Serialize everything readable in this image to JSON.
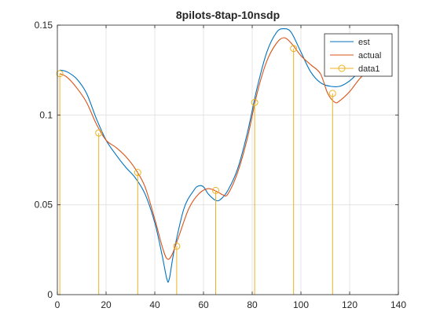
{
  "chart_data": {
    "type": "line",
    "title": "8pilots-8tap-10nsdp",
    "xlabel": "",
    "ylabel": "",
    "xlim": [
      0,
      140
    ],
    "ylim": [
      0,
      0.15
    ],
    "x_ticks": [
      0,
      20,
      40,
      60,
      80,
      100,
      120,
      140
    ],
    "x_tick_labels": [
      "0",
      "20",
      "40",
      "60",
      "80",
      "100",
      "120",
      "140"
    ],
    "y_ticks": [
      0,
      0.05,
      0.1,
      0.15
    ],
    "y_tick_labels": [
      "0",
      "0.05",
      "0.1",
      "0.15"
    ],
    "grid": true,
    "legend_position": "top-right",
    "series": [
      {
        "name": "est",
        "kind": "line",
        "color": "#0072BD",
        "points": [
          [
            1,
            0.125
          ],
          [
            4,
            0.124
          ],
          [
            8,
            0.12
          ],
          [
            12,
            0.112
          ],
          [
            16,
            0.098
          ],
          [
            20,
            0.086
          ],
          [
            24,
            0.078
          ],
          [
            28,
            0.071
          ],
          [
            32,
            0.065
          ],
          [
            36,
            0.056
          ],
          [
            40,
            0.04
          ],
          [
            43,
            0.022
          ],
          [
            45,
            0.0085
          ],
          [
            46,
            0.009
          ],
          [
            48,
            0.025
          ],
          [
            52,
            0.048
          ],
          [
            56,
            0.058
          ],
          [
            58,
            0.0605
          ],
          [
            60,
            0.06
          ],
          [
            62,
            0.056
          ],
          [
            65,
            0.0525
          ],
          [
            67,
            0.053
          ],
          [
            70,
            0.058
          ],
          [
            74,
            0.07
          ],
          [
            78,
            0.09
          ],
          [
            82,
            0.115
          ],
          [
            86,
            0.135
          ],
          [
            90,
            0.146
          ],
          [
            93,
            0.148
          ],
          [
            96,
            0.146
          ],
          [
            100,
            0.135
          ],
          [
            104,
            0.124
          ],
          [
            108,
            0.118
          ],
          [
            112,
            0.116
          ],
          [
            116,
            0.116
          ],
          [
            120,
            0.119
          ],
          [
            124,
            0.124
          ],
          [
            127,
            0.127
          ]
        ]
      },
      {
        "name": "actual",
        "kind": "line",
        "color": "#D95319",
        "points": [
          [
            1,
            0.123
          ],
          [
            4,
            0.121
          ],
          [
            8,
            0.115
          ],
          [
            12,
            0.107
          ],
          [
            16,
            0.095
          ],
          [
            20,
            0.086
          ],
          [
            24,
            0.082
          ],
          [
            28,
            0.077
          ],
          [
            32,
            0.07
          ],
          [
            36,
            0.06
          ],
          [
            40,
            0.042
          ],
          [
            43,
            0.027
          ],
          [
            45,
            0.02
          ],
          [
            47,
            0.022
          ],
          [
            50,
            0.033
          ],
          [
            54,
            0.048
          ],
          [
            58,
            0.056
          ],
          [
            62,
            0.059
          ],
          [
            66,
            0.057
          ],
          [
            68,
            0.0555
          ],
          [
            70,
            0.056
          ],
          [
            74,
            0.068
          ],
          [
            78,
            0.087
          ],
          [
            82,
            0.112
          ],
          [
            86,
            0.13
          ],
          [
            90,
            0.14
          ],
          [
            93,
            0.143
          ],
          [
            96,
            0.14
          ],
          [
            100,
            0.133
          ],
          [
            104,
            0.128
          ],
          [
            108,
            0.123
          ],
          [
            111,
            0.112
          ],
          [
            114,
            0.107
          ],
          [
            116,
            0.108
          ],
          [
            120,
            0.113
          ],
          [
            124,
            0.12
          ],
          [
            127,
            0.124
          ]
        ]
      },
      {
        "name": "data1",
        "kind": "stem",
        "color": "#EDB120",
        "x": [
          1,
          17,
          33,
          49,
          65,
          81,
          97,
          113
        ],
        "y": [
          0.123,
          0.09,
          0.068,
          0.027,
          0.058,
          0.107,
          0.137,
          0.112
        ]
      }
    ]
  }
}
